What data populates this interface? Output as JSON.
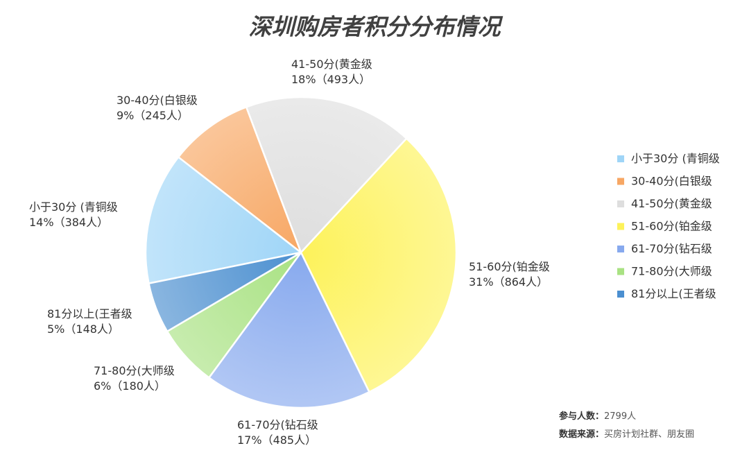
{
  "chart_data": {
    "type": "pie",
    "title": "深圳购房者积分分布情况",
    "slices": [
      {
        "legend": "小于30分 (青铜级",
        "name": "小于30分 (青铜级",
        "percent_label": "14%（384人）",
        "percent": 14,
        "count": 384,
        "color": "#9fd5f7"
      },
      {
        "legend": "30-40分(白银级",
        "name": "30-40分(白银级",
        "percent_label": "9%（245人）",
        "percent": 9,
        "count": 245,
        "color": "#f7a764"
      },
      {
        "legend": "41-50分(黄金级",
        "name": "41-50分(黄金级",
        "percent_label": "18%（493人）",
        "percent": 18,
        "count": 493,
        "color": "#dedede"
      },
      {
        "legend": "51-60分(铂金级",
        "name": "51-60分(铂金级",
        "percent_label": "31%（864人）",
        "percent": 31,
        "count": 864,
        "color": "#fdf25a"
      },
      {
        "legend": "61-70分(钻石级",
        "name": "61-70分(钻石级",
        "percent_label": "17%（485人）",
        "percent": 17,
        "count": 485,
        "color": "#87a9ee"
      },
      {
        "legend": "71-80分(大师级",
        "name": "71-80分(大师级",
        "percent_label": "6%（180人）",
        "percent": 6,
        "count": 180,
        "color": "#a9e283"
      },
      {
        "legend": "81分以上(王者级",
        "name": "81分以上(王者级",
        "percent_label": "5%（148人）",
        "percent": 5,
        "count": 148,
        "color": "#4b8fd0"
      }
    ],
    "legend_position": "right"
  },
  "footer": {
    "participants_label": "参与人数：",
    "participants_value": "2799人",
    "source_label": "数据来源：",
    "source_value": "买房计划社群、朋友圈"
  }
}
